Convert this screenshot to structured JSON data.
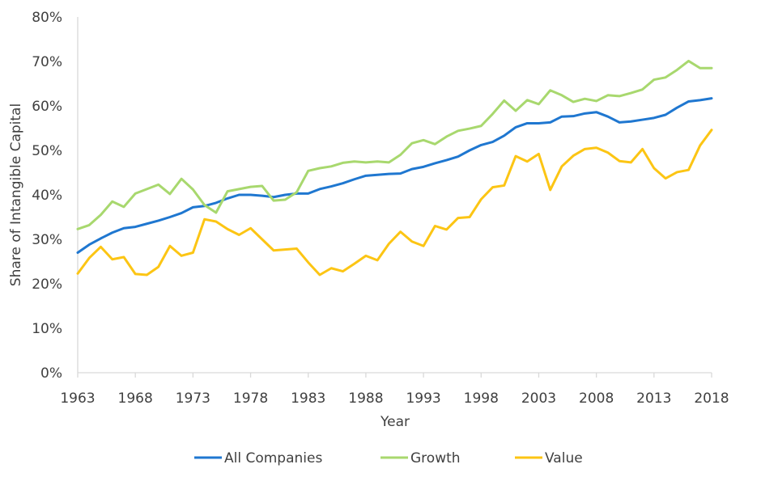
{
  "chart_data": {
    "type": "line",
    "title": "",
    "xlabel": "Year",
    "ylabel": "Share of Intangible Capital",
    "xlim": [
      1963,
      2018
    ],
    "ylim": [
      0,
      80
    ],
    "x_tick_labels": [
      "1963",
      "1968",
      "1973",
      "1978",
      "1983",
      "1988",
      "1993",
      "1998",
      "2003",
      "2008",
      "2013",
      "2018"
    ],
    "y_tick_labels": [
      "0%",
      "10%",
      "20%",
      "30%",
      "40%",
      "50%",
      "60%",
      "70%",
      "80%"
    ],
    "x": [
      1963,
      1964,
      1965,
      1966,
      1967,
      1968,
      1969,
      1970,
      1971,
      1972,
      1973,
      1974,
      1975,
      1976,
      1977,
      1978,
      1979,
      1980,
      1981,
      1982,
      1983,
      1984,
      1985,
      1986,
      1987,
      1988,
      1989,
      1990,
      1991,
      1992,
      1993,
      1994,
      1995,
      1996,
      1997,
      1998,
      1999,
      2000,
      2001,
      2002,
      2003,
      2004,
      2005,
      2006,
      2007,
      2008,
      2009,
      2010,
      2011,
      2012,
      2013,
      2014,
      2015,
      2016,
      2017,
      2018
    ],
    "legend_position": "bottom",
    "grid": false,
    "series": [
      {
        "name": "All Companies",
        "color": "#1F77D0",
        "values": [
          27.0,
          28.8,
          30.2,
          31.5,
          32.5,
          32.8,
          33.5,
          34.2,
          35.0,
          35.9,
          37.2,
          37.5,
          38.2,
          39.2,
          40.0,
          40.0,
          39.8,
          39.5,
          40.0,
          40.3,
          40.3,
          41.3,
          41.9,
          42.6,
          43.5,
          44.3,
          44.5,
          44.7,
          44.8,
          45.8,
          46.3,
          47.1,
          47.8,
          48.6,
          50.0,
          51.2,
          51.9,
          53.3,
          55.2,
          56.1,
          56.1,
          56.3,
          57.6,
          57.7,
          58.3,
          58.6,
          57.6,
          56.3,
          56.5,
          56.9,
          57.3,
          58.0,
          59.6,
          61.0,
          61.3,
          61.7
        ]
      },
      {
        "name": "Growth",
        "color": "#A8D86E",
        "values": [
          32.3,
          33.2,
          35.5,
          38.5,
          37.3,
          40.3,
          41.3,
          42.3,
          40.2,
          43.6,
          41.2,
          37.7,
          36.0,
          40.8,
          41.3,
          41.8,
          42.0,
          38.7,
          38.9,
          40.6,
          45.4,
          46.0,
          46.4,
          47.2,
          47.5,
          47.3,
          47.5,
          47.3,
          49.0,
          51.6,
          52.3,
          51.4,
          53.1,
          54.4,
          54.9,
          55.5,
          58.2,
          61.2,
          58.9,
          61.3,
          60.4,
          63.5,
          62.4,
          60.9,
          61.6,
          61.1,
          62.4,
          62.2,
          62.9,
          63.7,
          65.9,
          66.4,
          68.1,
          70.1,
          68.5,
          68.5
        ]
      },
      {
        "name": "Value",
        "color": "#FCC514",
        "values": [
          22.3,
          25.8,
          28.3,
          25.5,
          26.0,
          22.2,
          22.0,
          23.8,
          28.5,
          26.3,
          27.0,
          34.5,
          34.0,
          32.3,
          31.0,
          32.5,
          30.0,
          27.5,
          27.7,
          27.9,
          24.8,
          22.0,
          23.5,
          22.8,
          24.5,
          26.3,
          25.3,
          29.0,
          31.7,
          29.5,
          28.5,
          33.0,
          32.2,
          34.8,
          35.0,
          39.0,
          41.7,
          42.1,
          48.7,
          47.5,
          49.2,
          41.1,
          46.4,
          48.8,
          50.3,
          50.6,
          49.5,
          47.6,
          47.3,
          50.3,
          46.0,
          43.7,
          45.1,
          45.6,
          51.1,
          54.6
        ]
      }
    ]
  }
}
